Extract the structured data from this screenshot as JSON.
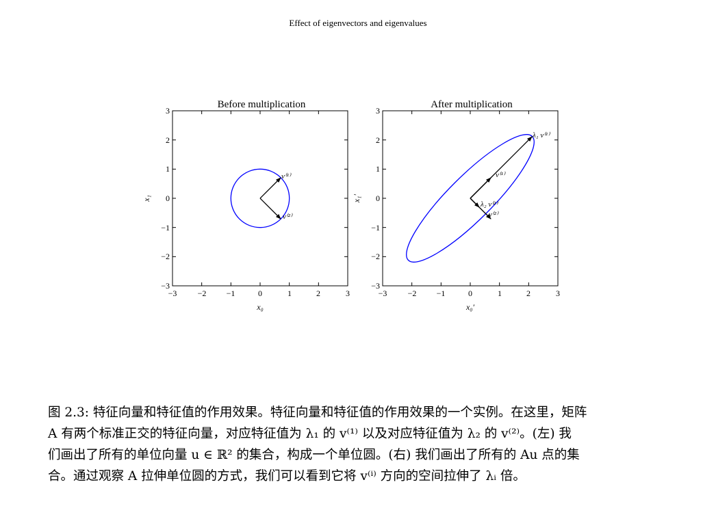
{
  "figure": {
    "title": "Effect of eigenvectors and eigenvalues"
  },
  "panels": [
    {
      "title": "Before multiplication",
      "xlabel": "x₀",
      "ylabel": "x₁",
      "xlim": [
        -3,
        3
      ],
      "ylim": [
        -3,
        3
      ],
      "tick_labels": [
        "−3",
        "−2",
        "−1",
        "0",
        "1",
        "2",
        "3"
      ],
      "shape": "unit circle",
      "vectors": [
        {
          "label": "v⁽¹⁾",
          "end": [
            0.707,
            0.707
          ]
        },
        {
          "label": "v⁽²⁾",
          "end": [
            0.707,
            -0.707
          ]
        }
      ]
    },
    {
      "title": "After multiplication",
      "xlabel": "x₀′",
      "ylabel": "x₁′",
      "xlim": [
        -3,
        3
      ],
      "ylim": [
        -3,
        3
      ],
      "tick_labels": [
        "−3",
        "−2",
        "−1",
        "0",
        "1",
        "2",
        "3"
      ],
      "shape": "ellipse",
      "vectors": [
        {
          "label": "λ₁ v⁽¹⁾",
          "end": [
            2.1,
            2.1
          ]
        },
        {
          "label": "v⁽¹⁾",
          "end": [
            0.707,
            0.707
          ]
        },
        {
          "label": "λ₂ v⁽²⁾",
          "end": [
            0.25,
            -0.25
          ]
        },
        {
          "label": "v⁽²⁾",
          "end": [
            0.707,
            -0.707
          ]
        }
      ]
    }
  ],
  "colors": {
    "curve": "#0000ff",
    "arrow": "#000000"
  },
  "caption": {
    "line1": "图 2.3: 特征向量和特征值的作用效果。特征向量和特征值的作用效果的一个实例。在这里，矩阵",
    "line2": "A 有两个标准正交的特征向量，对应特征值为 λ₁ 的 v⁽¹⁾ 以及对应特征值为 λ₂ 的 v⁽²⁾。(左) 我",
    "line3": "们画出了所有的单位向量 u ∈ ℝ² 的集合，构成一个单位圆。(右) 我们画出了所有的 Au 点的集",
    "line4": "合。通过观察 A 拉伸单位圆的方式，我们可以看到它将 v⁽ⁱ⁾ 方向的空间拉伸了 λᵢ 倍。"
  }
}
